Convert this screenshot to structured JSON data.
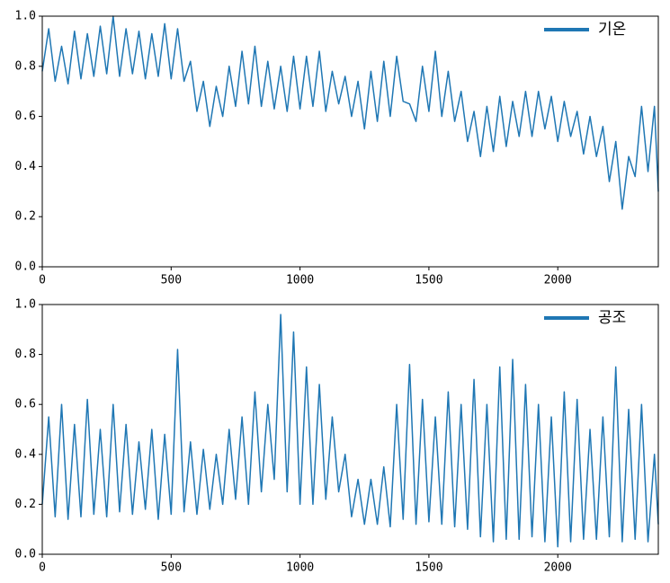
{
  "chart_data": [
    {
      "type": "line",
      "x": [
        0,
        25,
        50,
        75,
        100,
        125,
        150,
        175,
        200,
        225,
        250,
        275,
        300,
        325,
        350,
        375,
        400,
        425,
        450,
        475,
        500,
        525,
        550,
        575,
        600,
        625,
        650,
        675,
        700,
        725,
        750,
        775,
        800,
        825,
        850,
        875,
        900,
        925,
        950,
        975,
        1000,
        1025,
        1050,
        1075,
        1100,
        1125,
        1150,
        1175,
        1200,
        1225,
        1250,
        1275,
        1300,
        1325,
        1350,
        1375,
        1400,
        1425,
        1450,
        1475,
        1500,
        1525,
        1550,
        1575,
        1600,
        1625,
        1650,
        1675,
        1700,
        1725,
        1750,
        1775,
        1800,
        1825,
        1850,
        1875,
        1900,
        1925,
        1950,
        1975,
        2000,
        2025,
        2050,
        2075,
        2100,
        2125,
        2150,
        2175,
        2200,
        2225,
        2250,
        2275,
        2300,
        2325,
        2350,
        2375,
        2390
      ],
      "series": [
        {
          "name": "기온",
          "color": "#1f77b4",
          "values": [
            0.78,
            0.95,
            0.74,
            0.88,
            0.73,
            0.94,
            0.75,
            0.93,
            0.76,
            0.96,
            0.77,
            1.0,
            0.76,
            0.95,
            0.77,
            0.94,
            0.75,
            0.93,
            0.76,
            0.97,
            0.75,
            0.95,
            0.74,
            0.82,
            0.62,
            0.74,
            0.56,
            0.72,
            0.6,
            0.8,
            0.64,
            0.86,
            0.65,
            0.88,
            0.64,
            0.82,
            0.63,
            0.8,
            0.62,
            0.84,
            0.63,
            0.84,
            0.64,
            0.86,
            0.62,
            0.78,
            0.65,
            0.76,
            0.6,
            0.74,
            0.55,
            0.78,
            0.58,
            0.82,
            0.6,
            0.84,
            0.66,
            0.65,
            0.58,
            0.8,
            0.62,
            0.86,
            0.6,
            0.78,
            0.58,
            0.7,
            0.5,
            0.62,
            0.44,
            0.64,
            0.46,
            0.68,
            0.48,
            0.66,
            0.52,
            0.7,
            0.52,
            0.7,
            0.55,
            0.68,
            0.5,
            0.66,
            0.52,
            0.62,
            0.45,
            0.6,
            0.44,
            0.56,
            0.34,
            0.5,
            0.23,
            0.44,
            0.36,
            0.64,
            0.38,
            0.64,
            0.3
          ]
        }
      ],
      "xlim": [
        0,
        2390
      ],
      "ylim": [
        0,
        1
      ],
      "xticks": [
        0,
        500,
        1000,
        1500,
        2000
      ],
      "yticks": [
        {
          "value": 0,
          "label": "0.0"
        },
        {
          "value": 0.2,
          "label": "0.2"
        },
        {
          "value": 0.4,
          "label": "0.4"
        },
        {
          "value": 0.6,
          "label": "0.6"
        },
        {
          "value": 0.8,
          "label": "0.8"
        },
        {
          "value": 1,
          "label": "1.0"
        }
      ],
      "legend": "upper right"
    },
    {
      "type": "line",
      "x": [
        0,
        25,
        50,
        75,
        100,
        125,
        150,
        175,
        200,
        225,
        250,
        275,
        300,
        325,
        350,
        375,
        400,
        425,
        450,
        475,
        500,
        525,
        550,
        575,
        600,
        625,
        650,
        675,
        700,
        725,
        750,
        775,
        800,
        825,
        850,
        875,
        900,
        925,
        950,
        975,
        1000,
        1025,
        1050,
        1075,
        1100,
        1125,
        1150,
        1175,
        1200,
        1225,
        1250,
        1275,
        1300,
        1325,
        1350,
        1375,
        1400,
        1425,
        1450,
        1475,
        1500,
        1525,
        1550,
        1575,
        1600,
        1625,
        1650,
        1675,
        1700,
        1725,
        1750,
        1775,
        1800,
        1825,
        1850,
        1875,
        1900,
        1925,
        1950,
        1975,
        2000,
        2025,
        2050,
        2075,
        2100,
        2125,
        2150,
        2175,
        2200,
        2225,
        2250,
        2275,
        2300,
        2325,
        2350,
        2375,
        2390
      ],
      "series": [
        {
          "name": "공조",
          "color": "#1f77b4",
          "values": [
            0.2,
            0.55,
            0.15,
            0.6,
            0.14,
            0.52,
            0.15,
            0.62,
            0.16,
            0.5,
            0.15,
            0.6,
            0.17,
            0.52,
            0.16,
            0.45,
            0.18,
            0.5,
            0.14,
            0.48,
            0.16,
            0.82,
            0.17,
            0.45,
            0.16,
            0.42,
            0.18,
            0.4,
            0.2,
            0.5,
            0.22,
            0.55,
            0.2,
            0.65,
            0.25,
            0.6,
            0.3,
            0.96,
            0.25,
            0.89,
            0.2,
            0.75,
            0.2,
            0.68,
            0.22,
            0.55,
            0.25,
            0.4,
            0.15,
            0.3,
            0.12,
            0.3,
            0.12,
            0.35,
            0.11,
            0.6,
            0.14,
            0.76,
            0.12,
            0.62,
            0.13,
            0.55,
            0.12,
            0.65,
            0.11,
            0.6,
            0.1,
            0.7,
            0.07,
            0.6,
            0.05,
            0.75,
            0.06,
            0.78,
            0.06,
            0.68,
            0.07,
            0.6,
            0.05,
            0.55,
            0.03,
            0.65,
            0.05,
            0.62,
            0.06,
            0.5,
            0.06,
            0.55,
            0.07,
            0.75,
            0.05,
            0.58,
            0.06,
            0.6,
            0.05,
            0.4,
            0.12
          ]
        }
      ],
      "xlim": [
        0,
        2390
      ],
      "ylim": [
        0,
        1
      ],
      "xticks": [
        0,
        500,
        1000,
        1500,
        2000
      ],
      "yticks": [
        {
          "value": 0,
          "label": "0.0"
        },
        {
          "value": 0.2,
          "label": "0.2"
        },
        {
          "value": 0.4,
          "label": "0.4"
        },
        {
          "value": 0.6,
          "label": "0.6"
        },
        {
          "value": 0.8,
          "label": "0.8"
        },
        {
          "value": 1,
          "label": "1.0"
        }
      ],
      "legend": "upper right"
    }
  ]
}
